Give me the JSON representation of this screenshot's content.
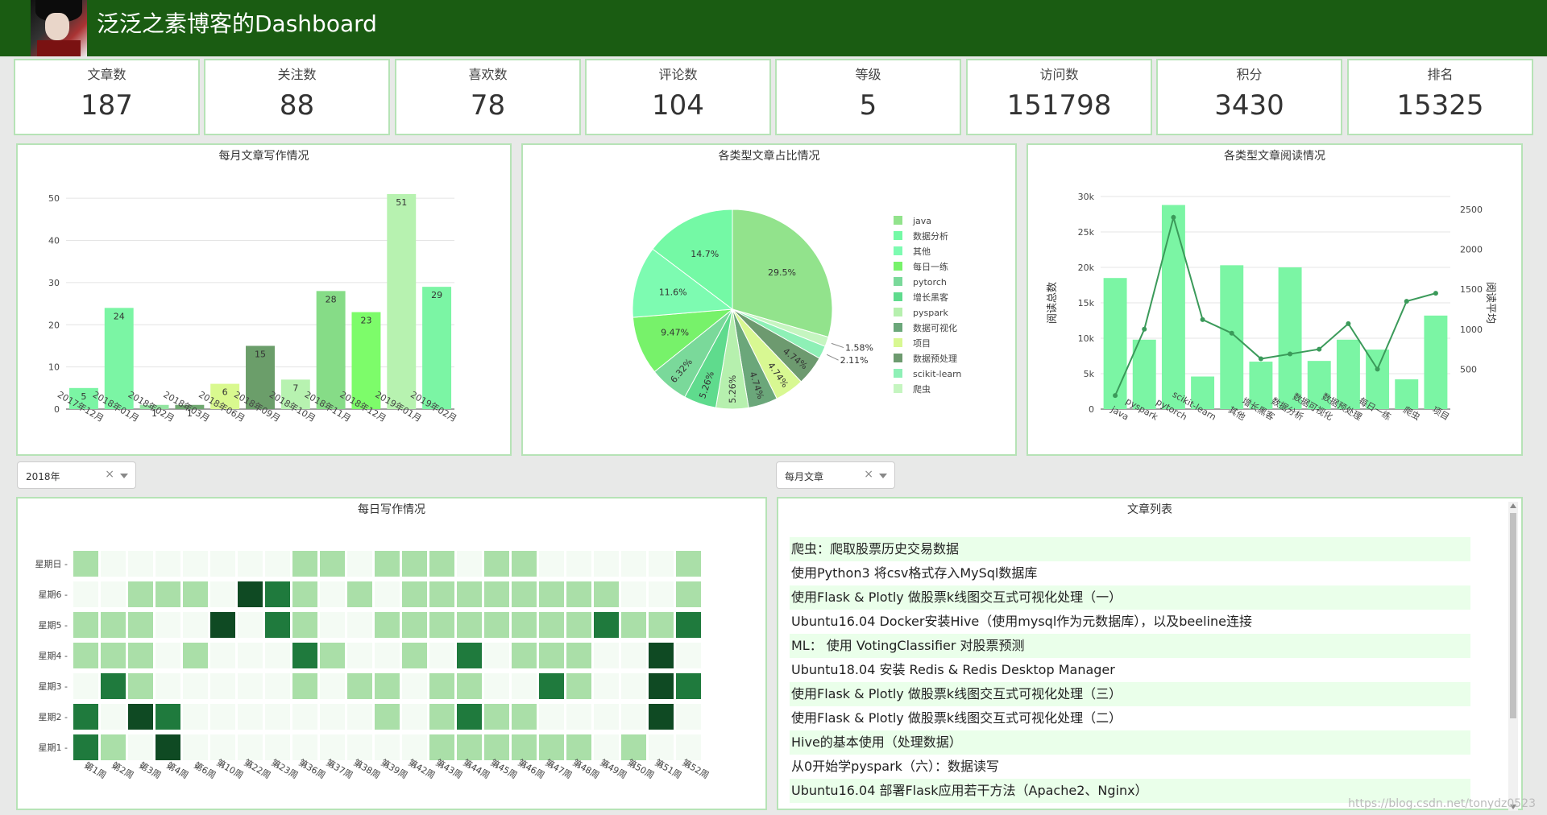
{
  "header": {
    "title": "泛泛之素博客的Dashboard"
  },
  "stats": [
    {
      "label": "文章数",
      "value": "187"
    },
    {
      "label": "关注数",
      "value": "88"
    },
    {
      "label": "喜欢数",
      "value": "78"
    },
    {
      "label": "评论数",
      "value": "104"
    },
    {
      "label": "等级",
      "value": "5"
    },
    {
      "label": "访问数",
      "value": "151798"
    },
    {
      "label": "积分",
      "value": "3430"
    },
    {
      "label": "排名",
      "value": "15325"
    }
  ],
  "filters": {
    "year": "2018年",
    "type": "每月文章"
  },
  "colors": {
    "header_bg": "#1a5c12",
    "accent": "#7bf5a4",
    "line": "#3b9a5a"
  },
  "chart_data": [
    {
      "id": "monthly",
      "type": "bar",
      "title": "每月文章写作情况",
      "categories": [
        "2017年12月",
        "2018年01月",
        "2018年02月",
        "2018年03月",
        "2018年06月",
        "2018年09月",
        "2018年10月",
        "2018年11月",
        "2018年12月",
        "2019年01月",
        "2019年02月"
      ],
      "values": [
        5,
        24,
        1,
        1,
        6,
        15,
        7,
        28,
        23,
        51,
        29
      ],
      "colors": [
        "#7bf5a4",
        "#7bf5a4",
        "#93e4a1",
        "#6fa870",
        "#d9f98f",
        "#6b9e6a",
        "#b7f2b0",
        "#86dc87",
        "#7dfc6a",
        "#b7f2b0",
        "#7bf5a4"
      ],
      "ylim": [
        0,
        55
      ],
      "yticks": [
        0,
        10,
        20,
        30,
        40,
        50
      ]
    },
    {
      "id": "pie",
      "type": "pie",
      "title": "各类型文章占比情况",
      "labels": [
        "java",
        "数据分析",
        "其他",
        "每日一练",
        "pytorch",
        "增长黑客",
        "pyspark",
        "数据可视化",
        "项目",
        "数据预处理",
        "scikit-learn",
        "爬虫"
      ],
      "values": [
        29.5,
        14.7,
        11.6,
        9.47,
        6.32,
        5.26,
        5.26,
        4.74,
        4.74,
        4.74,
        2.11,
        1.58
      ],
      "colors": [
        "#92e38c",
        "#74f9a5",
        "#7dfbb1",
        "#77f26a",
        "#7ad99a",
        "#5fdb8d",
        "#b6f0ae",
        "#6ba77a",
        "#d8f892",
        "#6d9a6f",
        "#8ef0b6",
        "#c5f5c0"
      ],
      "slice_order": [
        0,
        11,
        10,
        9,
        8,
        7,
        6,
        5,
        4,
        3,
        2,
        1
      ],
      "legend_position": "right"
    },
    {
      "id": "reads",
      "type": "bar",
      "title": "各类型文章阅读情况",
      "categories": [
        "java",
        "pyspark",
        "pytorch",
        "scikit-learn",
        "其他",
        "增长黑客",
        "数据分析",
        "数据可视化",
        "数据预处理",
        "每日一练",
        "爬虫",
        "项目"
      ],
      "series": [
        {
          "name": "阅读总数",
          "type": "bar",
          "values": [
            18500,
            9800,
            28800,
            4600,
            20300,
            6700,
            20000,
            6800,
            9800,
            8400,
            4200,
            13200
          ]
        },
        {
          "name": "阅读平均",
          "type": "line",
          "values": [
            170,
            1000,
            2400,
            1120,
            950,
            630,
            690,
            750,
            1070,
            500,
            1350,
            1450
          ]
        }
      ],
      "ylabel": "阅读总数",
      "y2label": "阅读平均",
      "ylim": [
        0,
        30000
      ],
      "yticks": [
        "0",
        "5k",
        "10k",
        "15k",
        "20k",
        "25k",
        "30k"
      ],
      "y2lim": [
        0,
        2500
      ],
      "y2ticks": [
        "500",
        "1000",
        "1500",
        "2000",
        "2500"
      ]
    },
    {
      "id": "daily",
      "type": "heatmap",
      "title": "每日写作情况",
      "rows": [
        "星期日",
        "星期6",
        "星期5",
        "星期4",
        "星期3",
        "星期2",
        "星期1"
      ],
      "week_labels": [
        "第1周",
        "第2周",
        "第3周",
        "第4周",
        "第6周",
        "第10周",
        "第22周",
        "第23周",
        "第36周",
        "第37周",
        "第38周",
        "第39周",
        "第42周",
        "第43周",
        "第44周",
        "第45周",
        "第46周",
        "第47周",
        "第48周",
        "第49周",
        "第50周",
        "第51周",
        "第52周"
      ],
      "matrix": [
        [
          1,
          0,
          0,
          0,
          0,
          0,
          0,
          0,
          1,
          1,
          0,
          1,
          1,
          1,
          0,
          1,
          1,
          0,
          0,
          0,
          0,
          0,
          1
        ],
        [
          0,
          0,
          1,
          1,
          1,
          0,
          4,
          3,
          1,
          0,
          1,
          0,
          1,
          1,
          1,
          1,
          1,
          1,
          1,
          1,
          0,
          0,
          1
        ],
        [
          1,
          1,
          1,
          0,
          0,
          4,
          0,
          3,
          1,
          0,
          0,
          1,
          1,
          1,
          1,
          1,
          1,
          1,
          1,
          3,
          1,
          1,
          3
        ],
        [
          1,
          1,
          1,
          0,
          1,
          0,
          0,
          0,
          3,
          1,
          0,
          0,
          1,
          0,
          3,
          0,
          1,
          1,
          1,
          0,
          0,
          4,
          0
        ],
        [
          0,
          3,
          1,
          0,
          0,
          0,
          0,
          0,
          1,
          0,
          1,
          1,
          0,
          1,
          1,
          0,
          0,
          3,
          1,
          0,
          0,
          4,
          3
        ],
        [
          3,
          0,
          4,
          3,
          0,
          0,
          0,
          0,
          0,
          0,
          0,
          1,
          0,
          1,
          3,
          1,
          1,
          0,
          0,
          0,
          0,
          4,
          0
        ],
        [
          3,
          1,
          0,
          4,
          0,
          0,
          0,
          0,
          0,
          0,
          0,
          0,
          0,
          1,
          1,
          1,
          1,
          1,
          1,
          0,
          1,
          0,
          0
        ]
      ],
      "palette": [
        "#f4fbf4",
        "#aadfa8",
        "#45a85c",
        "#1f7a3d",
        "#0f4a23"
      ]
    }
  ],
  "articles": [
    "爬虫：爬取股票历史交易数据",
    "使用Python3 将csv格式存入MySql数据库",
    "使用Flask & Plotly 做股票k线图交互式可视化处理（一）",
    "Ubuntu16.04 Docker安装Hive（使用mysql作为元数据库），以及beeline连接",
    "ML： 使用 VotingClassifier 对股票预测",
    "Ubuntu18.04 安装 Redis & Redis Desktop Manager",
    "使用Flask & Plotly 做股票k线图交互式可视化处理（三）",
    "使用Flask & Plotly 做股票k线图交互式可视化处理（二）",
    "Hive的基本使用（处理数据）",
    "从0开始学pyspark（六）：数据读写",
    "Ubuntu16.04 部署Flask应用若干方法（Apache2、Nginx）"
  ],
  "list_title": "文章列表",
  "watermark": "https://blog.csdn.net/tonydz0523"
}
